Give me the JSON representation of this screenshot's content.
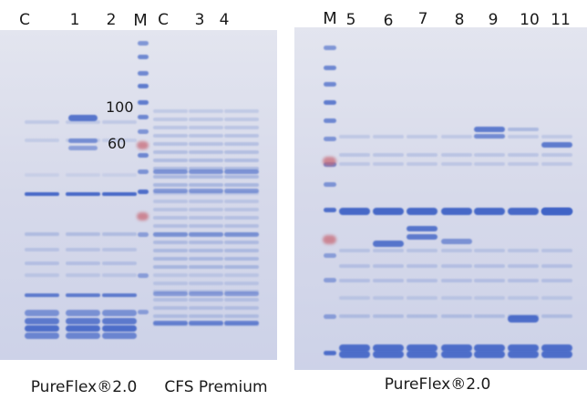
{
  "left_gel": {
    "top_labels": [
      {
        "id": "c1",
        "text": "C"
      },
      {
        "id": "l1",
        "text": "1"
      },
      {
        "id": "l2",
        "text": "2"
      },
      {
        "id": "m1",
        "text": "M"
      },
      {
        "id": "c2",
        "text": "C"
      },
      {
        "id": "l3",
        "text": "3"
      },
      {
        "id": "l4",
        "text": "4"
      }
    ],
    "marker_labels": [
      {
        "id": "mk100",
        "text": "100"
      },
      {
        "id": "mk60",
        "text": "60"
      }
    ],
    "caption_left": "PureFlex®2.0",
    "caption_right": "CFS Premium"
  },
  "right_gel": {
    "top_labels": [
      {
        "id": "m2",
        "text": "M"
      },
      {
        "id": "l5",
        "text": "5"
      },
      {
        "id": "l6",
        "text": "6"
      },
      {
        "id": "l7",
        "text": "7"
      },
      {
        "id": "l8",
        "text": "8"
      },
      {
        "id": "l9",
        "text": "9"
      },
      {
        "id": "l10",
        "text": "10"
      },
      {
        "id": "l11",
        "text": "11"
      }
    ],
    "caption": "PureFlex®2.0"
  },
  "colors": {
    "gel_background": "#d9dcec",
    "band_dark": "#3f63c6",
    "band_light": "#8ea2d8",
    "marker_red": "#c86470"
  }
}
